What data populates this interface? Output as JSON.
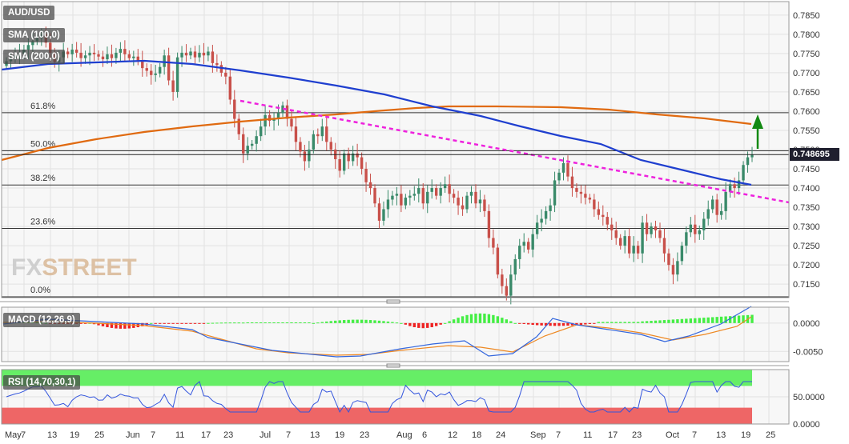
{
  "instrument": "AUD/USD",
  "last_price": "0.748695",
  "watermark": {
    "a": "FX",
    "b": "STREET"
  },
  "legend": {
    "sma100": "SMA (100,0)",
    "sma200": "SMA (200,0)",
    "macd": "MACD (12,26,9)",
    "rsi": "RSI (14,70,30,1)"
  },
  "colors": {
    "bull": "#3a8a6a",
    "bear": "#c8504a",
    "sma100": "#1f3fcf",
    "sma200": "#e06a10",
    "trendline": "#ee22dd",
    "arrow": "#138a13",
    "macd_pos": "#44ee44",
    "macd_neg": "#ee2222",
    "macd_line": "#3366dd",
    "signal_line": "#ee8822",
    "rsi_ob": "#66ee66",
    "rsi_os": "#ee6666",
    "rsi_line": "#3355dd"
  },
  "chart_data": [
    {
      "type": "candlestick",
      "title": "AUD/USD",
      "ylim": [
        0.7115,
        0.7885
      ],
      "yticks": [
        "0.7850",
        "0.7800",
        "0.7750",
        "0.7700",
        "0.7650",
        "0.7600",
        "0.7550",
        "0.7500",
        "0.7450",
        "0.7400",
        "0.7350",
        "0.7300",
        "0.7250",
        "0.7200",
        "0.7150"
      ],
      "xticks": [
        "May",
        "7",
        "13",
        "19",
        "25",
        "Jun",
        "7",
        "11",
        "17",
        "23",
        "Jul",
        "7",
        "13",
        "19",
        "23",
        "Aug",
        "6",
        "12",
        "18",
        "24",
        "Sep",
        "7",
        "11",
        "17",
        "23",
        "Oct",
        "7",
        "13",
        "19",
        "25"
      ],
      "fibonacci": [
        {
          "label": "61.8%",
          "value": 0.7596
        },
        {
          "label": "50.0%",
          "value": 0.7497
        },
        {
          "label": "38.2%",
          "value": 0.7408
        },
        {
          "label": "23.6%",
          "value": 0.7295
        },
        {
          "label": "0.0%",
          "value": 0.7117
        }
      ],
      "closes": [
        0.773,
        0.7738,
        0.7745,
        0.775,
        0.776,
        0.7772,
        0.7782,
        0.779,
        0.78,
        0.7778,
        0.7752,
        0.7728,
        0.774,
        0.7755,
        0.7748,
        0.776,
        0.7752,
        0.7738,
        0.7745,
        0.7752,
        0.7748,
        0.7742,
        0.7735,
        0.7748,
        0.7738,
        0.7752,
        0.7762,
        0.7748,
        0.7738,
        0.7742,
        0.7732,
        0.7712,
        0.7705,
        0.7694,
        0.7698,
        0.7715,
        0.7745,
        0.768,
        0.765,
        0.774,
        0.7752,
        0.7745,
        0.7755,
        0.774,
        0.7752,
        0.7745,
        0.7755,
        0.7725,
        0.772,
        0.77,
        0.769,
        0.763,
        0.758,
        0.754,
        0.749,
        0.751,
        0.7515,
        0.7535,
        0.756,
        0.759,
        0.7575,
        0.758,
        0.7595,
        0.7615,
        0.758,
        0.756,
        0.752,
        0.7495,
        0.747,
        0.75,
        0.754,
        0.7535,
        0.756,
        0.752,
        0.75,
        0.7475,
        0.7445,
        0.749,
        0.747,
        0.749,
        0.748,
        0.745,
        0.7415,
        0.74,
        0.736,
        0.7315,
        0.7345,
        0.737,
        0.738,
        0.7385,
        0.7355,
        0.7375,
        0.738,
        0.7385,
        0.74,
        0.736,
        0.739,
        0.74,
        0.738,
        0.74,
        0.741,
        0.7385,
        0.7375,
        0.7355,
        0.7345,
        0.738,
        0.739,
        0.736,
        0.737,
        0.734,
        0.727,
        0.7245,
        0.7175,
        0.7145,
        0.712,
        0.7175,
        0.7215,
        0.725,
        0.726,
        0.724,
        0.728,
        0.731,
        0.732,
        0.734,
        0.7355,
        0.742,
        0.744,
        0.7465,
        0.743,
        0.74,
        0.739,
        0.7385,
        0.7375,
        0.737,
        0.7345,
        0.733,
        0.7325,
        0.7305,
        0.729,
        0.727,
        0.725,
        0.7275,
        0.723,
        0.725,
        0.723,
        0.731,
        0.728,
        0.73,
        0.729,
        0.727,
        0.723,
        0.72,
        0.7175,
        0.721,
        0.725,
        0.7285,
        0.7305,
        0.728,
        0.729,
        0.732,
        0.7345,
        0.737,
        0.733,
        0.734,
        0.739,
        0.741,
        0.74,
        0.742,
        0.746,
        0.748,
        0.7487
      ]
    },
    {
      "type": "bar",
      "title": "MACD (12,26,9)",
      "ylim": [
        -0.0068,
        0.0028
      ],
      "yticks": [
        "0.0000",
        "-0.0050"
      ]
    },
    {
      "type": "line",
      "title": "RSI (14,70,30,1)",
      "ylim": [
        0,
        100
      ],
      "yticks": [
        "50.0000",
        "0.0000"
      ]
    }
  ]
}
